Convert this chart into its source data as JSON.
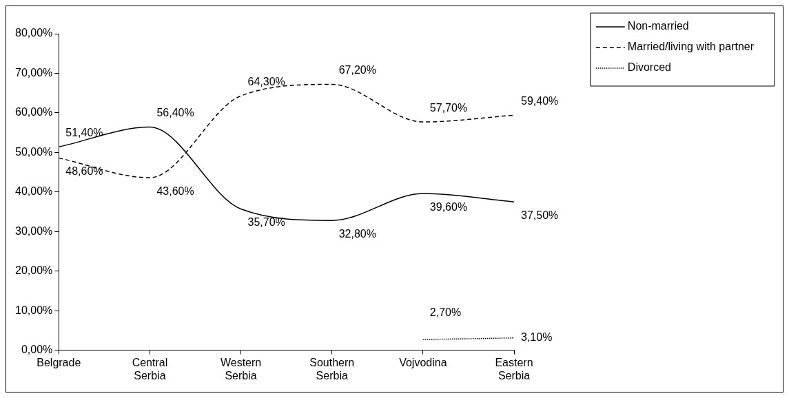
{
  "chart_data": {
    "type": "line",
    "categories": [
      "Belgrade",
      "Central Serbia",
      "Western Serbia",
      "Southern Serbia",
      "Vojvodina",
      "Eastern Serbia"
    ],
    "series": [
      {
        "name": "Non-married",
        "color": "#000000",
        "line_style": "solid",
        "values": [
          51.4,
          56.4,
          35.7,
          32.8,
          39.6,
          37.5
        ],
        "value_labels": [
          "51,40%",
          "56,40%",
          "35,70%",
          "32,80%",
          "39,60%",
          "37,50%"
        ]
      },
      {
        "name": "Married/living with partner",
        "color": "#000000",
        "line_style": "dashed",
        "values": [
          48.6,
          43.6,
          64.3,
          67.2,
          57.7,
          59.4
        ],
        "value_labels": [
          "48,60%",
          "43,60%",
          "64,30%",
          "67,20%",
          "57,70%",
          "59,40%"
        ]
      },
      {
        "name": "Divorced",
        "color": "#000000",
        "line_style": "dotted",
        "values": [
          null,
          null,
          null,
          null,
          2.7,
          3.1
        ],
        "value_labels": [
          null,
          null,
          null,
          null,
          "2,70%",
          "3,10%"
        ]
      }
    ],
    "ylim": [
      0,
      80
    ],
    "yticks": [
      {
        "value": 0,
        "label": "0,00%"
      },
      {
        "value": 10,
        "label": "10,00%"
      },
      {
        "value": 20,
        "label": "20,00%"
      },
      {
        "value": 30,
        "label": "30,00%"
      },
      {
        "value": 40,
        "label": "40,00%"
      },
      {
        "value": 50,
        "label": "50,00%"
      },
      {
        "value": 60,
        "label": "60,00%"
      },
      {
        "value": 70,
        "label": "70,00%"
      },
      {
        "value": 80,
        "label": "80,00%"
      }
    ],
    "grid": false,
    "legend": "top right",
    "marker": "none"
  }
}
